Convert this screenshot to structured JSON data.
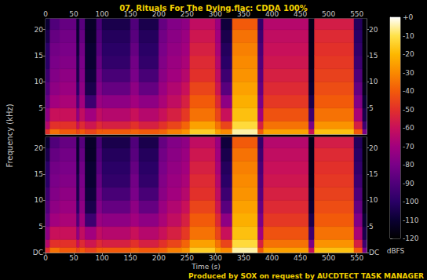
{
  "chart_data": {
    "type": "heatmap",
    "title": "07. Rituals For The Dying.flac: CDDA 100%",
    "x_label": "Time (s)",
    "y_label": "Frequency (kHz)",
    "annotation": "Produced by SOX on request by AUCDTECT TASK MANAGER",
    "xlim": [
      0,
      567
    ],
    "xticks": [
      0,
      50,
      100,
      150,
      200,
      250,
      300,
      350,
      400,
      450,
      500,
      550
    ],
    "ylim": [
      0,
      22.05
    ],
    "grid": false,
    "time_edges": [
      0,
      8,
      25,
      55,
      60,
      70,
      90,
      100,
      150,
      165,
      200,
      215,
      240,
      255,
      300,
      310,
      330,
      375,
      385,
      465,
      475,
      545,
      560,
      567
    ],
    "freq_edges": [
      0,
      1,
      2.5,
      5,
      7.5,
      10,
      12.5,
      15,
      17.5,
      20,
      22.05
    ],
    "channels": [
      {
        "yticks": [
          5,
          10,
          15,
          20
        ],
        "cells": [
          [
            -50,
            -65,
            -75,
            -85,
            -90,
            -95,
            -100,
            -100,
            -105,
            -110
          ],
          [
            -35,
            -50,
            -60,
            -70,
            -75,
            -78,
            -80,
            -82,
            -85,
            -90
          ],
          [
            -40,
            -50,
            -60,
            -68,
            -72,
            -75,
            -78,
            -80,
            -82,
            -85
          ],
          [
            -45,
            -60,
            -75,
            -90,
            -100,
            -105,
            -105,
            -108,
            -110,
            -110
          ],
          [
            -40,
            -52,
            -62,
            -70,
            -75,
            -78,
            -80,
            -82,
            -85,
            -88
          ],
          [
            -45,
            -58,
            -70,
            -95,
            -105,
            -108,
            -110,
            -110,
            -112,
            -112
          ],
          [
            -40,
            -52,
            -62,
            -72,
            -78,
            -82,
            -85,
            -88,
            -90,
            -92
          ],
          [
            -40,
            -55,
            -65,
            -75,
            -85,
            -92,
            -98,
            -100,
            -102,
            -105
          ],
          [
            -38,
            -50,
            -60,
            -70,
            -75,
            -80,
            -82,
            -85,
            -88,
            -90
          ],
          [
            -40,
            -55,
            -65,
            -75,
            -85,
            -92,
            -98,
            -100,
            -102,
            -105
          ],
          [
            -38,
            -50,
            -60,
            -68,
            -72,
            -76,
            -78,
            -80,
            -82,
            -85
          ],
          [
            -32,
            -45,
            -55,
            -62,
            -66,
            -70,
            -72,
            -74,
            -76,
            -78
          ],
          [
            -28,
            -38,
            -48,
            -55,
            -60,
            -65,
            -68,
            -70,
            -72,
            -75
          ],
          [
            -15,
            -25,
            -35,
            -40,
            -45,
            -50,
            -52,
            -55,
            -58,
            -62
          ],
          [
            -25,
            -35,
            -45,
            -52,
            -58,
            -62,
            -65,
            -68,
            -70,
            -72
          ],
          [
            -30,
            -45,
            -60,
            -75,
            -88,
            -95,
            -100,
            -102,
            -105,
            -108
          ],
          [
            -5,
            -12,
            -18,
            -22,
            -25,
            -28,
            -30,
            -32,
            -35,
            -40
          ],
          [
            -40,
            -55,
            -70,
            -80,
            -85,
            -88,
            -90,
            -92,
            -95,
            -98
          ],
          [
            -25,
            -35,
            -42,
            -48,
            -52,
            -55,
            -58,
            -60,
            -62,
            -65
          ],
          [
            -60,
            -80,
            -95,
            -105,
            -110,
            -112,
            -115,
            -115,
            -115,
            -115
          ],
          [
            -18,
            -28,
            -35,
            -40,
            -43,
            -46,
            -48,
            -50,
            -52,
            -56
          ],
          [
            -40,
            -55,
            -68,
            -78,
            -85,
            -90,
            -95,
            -98,
            -100,
            -102
          ],
          [
            -80,
            -95,
            -105,
            -110,
            -115,
            -118,
            -118,
            -118,
            -118,
            -118
          ]
        ]
      },
      {
        "yticks": [
          {
            "value": 0,
            "label": "DC"
          },
          5,
          10,
          15,
          20
        ],
        "cells": [
          [
            -50,
            -65,
            -75,
            -85,
            -90,
            -95,
            -100,
            -100,
            -105,
            -110
          ],
          [
            -35,
            -50,
            -60,
            -70,
            -75,
            -78,
            -80,
            -82,
            -85,
            -90
          ],
          [
            -40,
            -50,
            -60,
            -68,
            -72,
            -75,
            -78,
            -80,
            -82,
            -85
          ],
          [
            -45,
            -60,
            -75,
            -90,
            -100,
            -105,
            -105,
            -108,
            -110,
            -110
          ],
          [
            -40,
            -52,
            -62,
            -70,
            -75,
            -78,
            -80,
            -82,
            -85,
            -88
          ],
          [
            -45,
            -58,
            -70,
            -95,
            -105,
            -108,
            -110,
            -110,
            -112,
            -112
          ],
          [
            -40,
            -52,
            -62,
            -72,
            -78,
            -82,
            -85,
            -88,
            -90,
            -92
          ],
          [
            -40,
            -55,
            -65,
            -75,
            -85,
            -92,
            -98,
            -100,
            -102,
            -105
          ],
          [
            -38,
            -50,
            -60,
            -70,
            -75,
            -80,
            -82,
            -85,
            -88,
            -90
          ],
          [
            -40,
            -55,
            -65,
            -75,
            -85,
            -92,
            -98,
            -100,
            -102,
            -105
          ],
          [
            -38,
            -50,
            -60,
            -68,
            -72,
            -76,
            -78,
            -80,
            -82,
            -85
          ],
          [
            -32,
            -45,
            -55,
            -62,
            -66,
            -70,
            -72,
            -74,
            -76,
            -78
          ],
          [
            -28,
            -38,
            -48,
            -55,
            -60,
            -65,
            -68,
            -70,
            -72,
            -75
          ],
          [
            -15,
            -25,
            -35,
            -40,
            -45,
            -50,
            -52,
            -55,
            -58,
            -62
          ],
          [
            -25,
            -35,
            -45,
            -52,
            -58,
            -62,
            -65,
            -68,
            -70,
            -72
          ],
          [
            -30,
            -45,
            -60,
            -75,
            -88,
            -95,
            -100,
            -102,
            -105,
            -108
          ],
          [
            -5,
            -12,
            -18,
            -22,
            -25,
            -28,
            -30,
            -32,
            -35,
            -40
          ],
          [
            -40,
            -55,
            -70,
            -80,
            -85,
            -88,
            -90,
            -92,
            -95,
            -98
          ],
          [
            -25,
            -35,
            -42,
            -48,
            -52,
            -55,
            -58,
            -60,
            -62,
            -65
          ],
          [
            -60,
            -80,
            -95,
            -105,
            -110,
            -112,
            -115,
            -115,
            -115,
            -115
          ],
          [
            -18,
            -28,
            -35,
            -40,
            -43,
            -46,
            -48,
            -50,
            -52,
            -56
          ],
          [
            -40,
            -55,
            -68,
            -78,
            -85,
            -90,
            -95,
            -98,
            -100,
            -102
          ],
          [
            -80,
            -95,
            -105,
            -110,
            -115,
            -118,
            -118,
            -118,
            -118,
            -118
          ]
        ]
      }
    ],
    "colorbar": {
      "range": [
        -120,
        0
      ],
      "ticks": [
        {
          "value": 0,
          "label": "+0"
        },
        -10,
        -20,
        -30,
        -40,
        -50,
        -60,
        -70,
        -80,
        -90,
        -100,
        -110,
        -120
      ],
      "label": "dBFS"
    }
  }
}
